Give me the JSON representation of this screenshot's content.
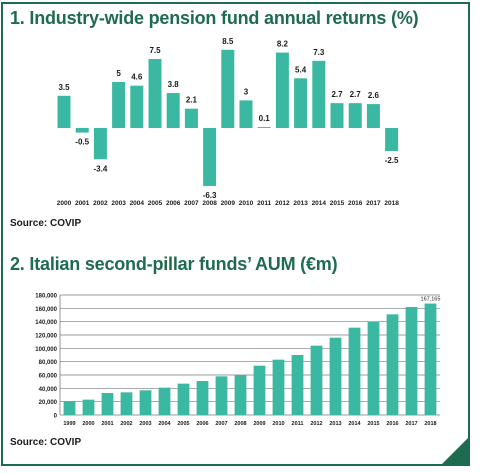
{
  "colors": {
    "bar": "#3bb8a1",
    "accent": "#1f6b4f",
    "text": "#1a1a1a",
    "grid": "#7a7a7a"
  },
  "chart1": {
    "title": "1. Industry-wide pension fund annual returns (%)",
    "source": "Source: COVIP"
  },
  "chart2": {
    "title": "2. Italian second-pillar funds’ AUM (€m)",
    "source": "Source: COVIP"
  },
  "chart_data": [
    {
      "type": "bar",
      "title": "1. Industry-wide pension fund annual returns (%)",
      "categories": [
        "2000",
        "2001",
        "2002",
        "2003",
        "2004",
        "2005",
        "2006",
        "2007",
        "2008",
        "2009",
        "2010",
        "2011",
        "2012",
        "2013",
        "2014",
        "2015",
        "2016",
        "2017",
        "2018"
      ],
      "values": [
        3.5,
        -0.5,
        -3.4,
        5,
        4.6,
        7.5,
        3.8,
        2.1,
        -6.3,
        8.5,
        3,
        0.1,
        8.2,
        5.4,
        7.3,
        2.7,
        2.7,
        2.6,
        -2.5
      ],
      "labels": [
        "3.5",
        "-0.5",
        "-3.4",
        "5",
        "4.6",
        "7.5",
        "3.8",
        "2.1",
        "-6.3",
        "8.5",
        "3",
        "0.1",
        "8.2",
        "5.4",
        "7.3",
        "2.7",
        "2.7",
        "2.6",
        "-2.5"
      ],
      "xlabel": "",
      "ylabel": "",
      "ylim": [
        -7,
        9.5
      ],
      "grid": false
    },
    {
      "type": "bar",
      "title": "2. Italian second-pillar funds’ AUM (€m)",
      "categories": [
        "1999",
        "2000",
        "2001",
        "2002",
        "2003",
        "2004",
        "2005",
        "2006",
        "2007",
        "2008",
        "2009",
        "2010",
        "2011",
        "2012",
        "2013",
        "2014",
        "2015",
        "2016",
        "2017",
        "2018"
      ],
      "values": [
        21000,
        23000,
        33000,
        34000,
        37000,
        41000,
        47000,
        51000,
        58000,
        60000,
        74000,
        83000,
        90000,
        104000,
        116000,
        131000,
        140000,
        151000,
        162000,
        167165
      ],
      "last_label": "167,165",
      "yticks": [
        "0",
        "20,000",
        "40,000",
        "60,000",
        "80,000",
        "100,000",
        "120,000",
        "140,000",
        "160,000",
        "180,000"
      ],
      "xlabel": "",
      "ylabel": "",
      "ylim": [
        0,
        180000
      ],
      "grid": true
    }
  ]
}
